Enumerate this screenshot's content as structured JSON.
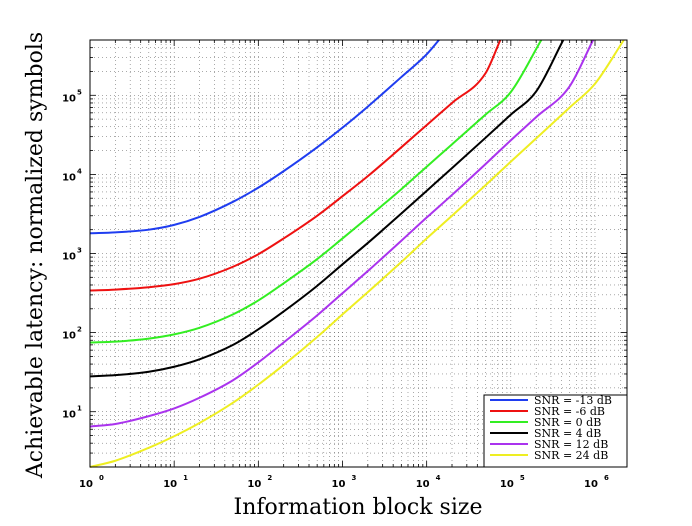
{
  "chart_data": {
    "type": "line",
    "title": "",
    "xlabel": "Information block size",
    "ylabel": "Achievable latency: normalized symbols",
    "xscale": "log",
    "yscale": "log",
    "xlim": [
      1,
      2400000
    ],
    "ylim": [
      2,
      500000
    ],
    "x_ticks": [
      {
        "base": "10",
        "exp": "0",
        "value": 1
      },
      {
        "base": "10",
        "exp": "1",
        "value": 10
      },
      {
        "base": "10",
        "exp": "2",
        "value": 100
      },
      {
        "base": "10",
        "exp": "3",
        "value": 1000
      },
      {
        "base": "10",
        "exp": "4",
        "value": 10000
      },
      {
        "base": "10",
        "exp": "5",
        "value": 100000
      },
      {
        "base": "10",
        "exp": "6",
        "value": 1000000
      }
    ],
    "y_ticks": [
      {
        "base": "10",
        "exp": "1",
        "value": 10
      },
      {
        "base": "10",
        "exp": "2",
        "value": 100
      },
      {
        "base": "10",
        "exp": "3",
        "value": 1000
      },
      {
        "base": "10",
        "exp": "4",
        "value": 10000
      },
      {
        "base": "10",
        "exp": "5",
        "value": 100000
      }
    ],
    "grid": true,
    "legend_position": "bottom-right",
    "series": [
      {
        "name": "SNR = -13 dB",
        "color": "#1f3df0",
        "x": [
          1,
          2,
          5,
          10,
          20,
          50,
          100,
          200,
          500,
          1000,
          2000,
          5000,
          10000,
          14000
        ],
        "y": [
          1800,
          1850,
          2000,
          2300,
          2900,
          4500,
          6800,
          11000,
          22000,
          39000,
          72000,
          170000,
          330000,
          500000
        ]
      },
      {
        "name": "SNR = -6 dB",
        "color": "#ee1111",
        "x": [
          1,
          2,
          5,
          10,
          20,
          50,
          100,
          200,
          500,
          1000,
          2000,
          5000,
          10000,
          20000,
          50000,
          75000
        ],
        "y": [
          340,
          350,
          375,
          410,
          480,
          680,
          980,
          1550,
          3000,
          5300,
          9500,
          22000,
          42000,
          80000,
          190000,
          500000
        ]
      },
      {
        "name": "SNR = 0 dB",
        "color": "#33ee22",
        "x": [
          1,
          2,
          5,
          10,
          20,
          50,
          100,
          200,
          500,
          1000,
          2000,
          5000,
          10000,
          20000,
          50000,
          100000,
          230000
        ],
        "y": [
          75,
          77,
          84,
          95,
          115,
          170,
          255,
          420,
          850,
          1550,
          2850,
          6500,
          12500,
          24000,
          57000,
          110000,
          500000
        ]
      },
      {
        "name": "SNR = 4 dB",
        "color": "#000000",
        "x": [
          1,
          2,
          5,
          10,
          20,
          50,
          100,
          200,
          500,
          1000,
          2000,
          5000,
          10000,
          20000,
          50000,
          100000,
          200000,
          420000
        ],
        "y": [
          28,
          29,
          32,
          37,
          46,
          70,
          110,
          185,
          390,
          730,
          1360,
          3200,
          6200,
          12000,
          29000,
          57000,
          112000,
          500000
        ]
      },
      {
        "name": "SNR = 12 dB",
        "color": "#aa33ee",
        "x": [
          1,
          2,
          5,
          10,
          20,
          50,
          100,
          200,
          500,
          1000,
          2000,
          5000,
          10000,
          20000,
          50000,
          100000,
          200000,
          500000,
          950000
        ],
        "y": [
          6.5,
          7,
          8.8,
          11,
          15,
          25,
          42,
          75,
          165,
          315,
          600,
          1450,
          2850,
          5500,
          13500,
          27000,
          53000,
          130000,
          500000
        ]
      },
      {
        "name": "SNR = 24 dB",
        "color": "#eeee22",
        "x": [
          1,
          2,
          5,
          10,
          20,
          50,
          100,
          200,
          500,
          1000,
          2000,
          5000,
          10000,
          20000,
          50000,
          100000,
          200000,
          500000,
          1000000,
          2200000
        ],
        "y": [
          2,
          2.4,
          3.5,
          4.9,
          7.2,
          13,
          22,
          39,
          88,
          170,
          325,
          780,
          1550,
          3000,
          7300,
          14500,
          28500,
          70000,
          140000,
          500000
        ]
      }
    ]
  }
}
